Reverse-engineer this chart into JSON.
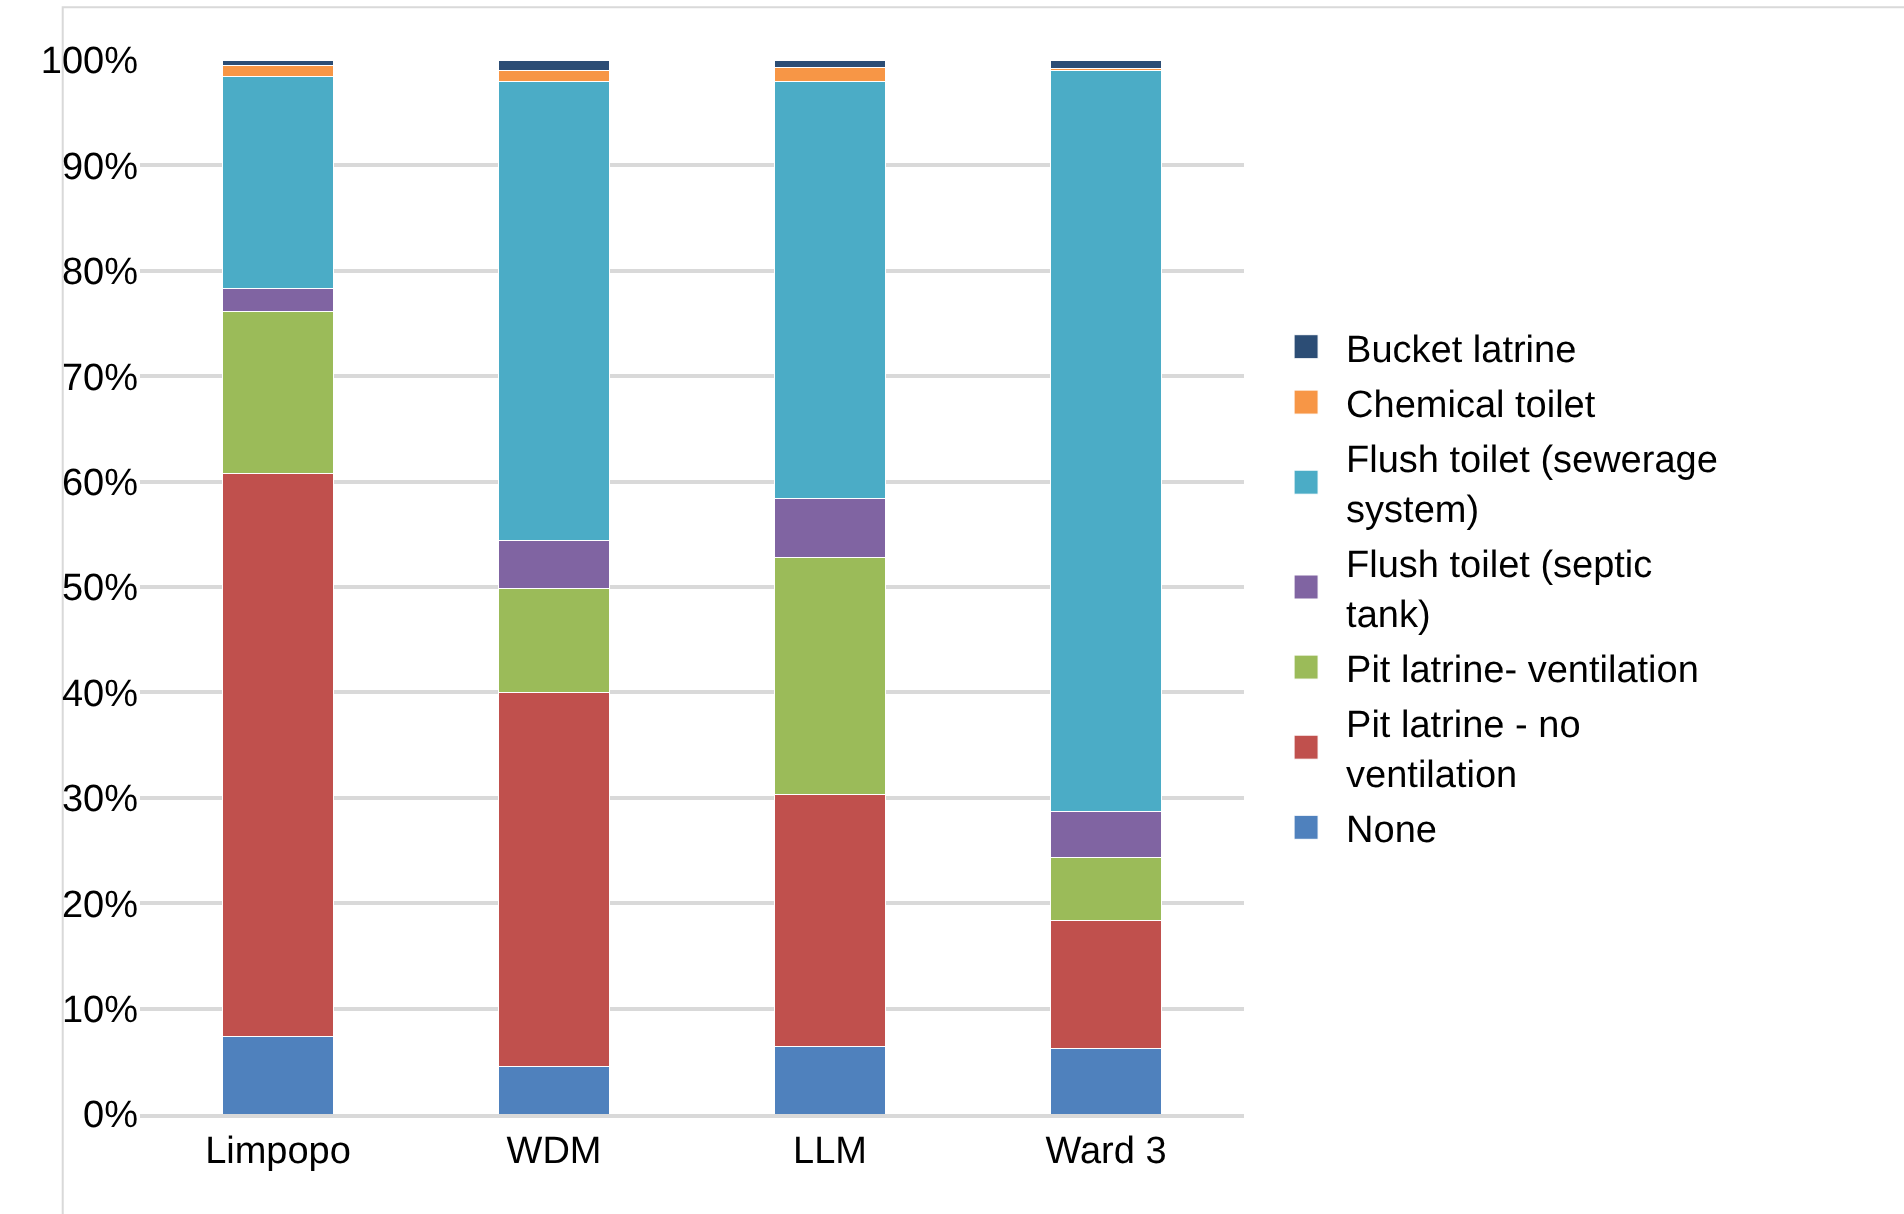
{
  "chart_data": {
    "type": "bar",
    "stacked": true,
    "categories": [
      "Limpopo",
      "WDM",
      "LLM",
      "Ward 3"
    ],
    "series": [
      {
        "name": "None",
        "color": "#4f81bd",
        "values": [
          7.4,
          4.5,
          6.4,
          6.2
        ]
      },
      {
        "name": "Pit latrine - no ventilation",
        "color": "#c0504d",
        "values": [
          53.4,
          35.5,
          23.9,
          12.2
        ]
      },
      {
        "name": "Pit latrine- ventilation",
        "color": "#9bbb59",
        "values": [
          15.3,
          9.9,
          22.5,
          5.9
        ]
      },
      {
        "name": "Flush toilet (septic tank)",
        "color": "#8064a2",
        "values": [
          2.2,
          4.5,
          5.6,
          4.4
        ]
      },
      {
        "name": "Flush toilet (sewerage system)",
        "color": "#4bacc6",
        "values": [
          20.1,
          43.6,
          39.6,
          70.3
        ]
      },
      {
        "name": "Chemical toilet",
        "color": "#f79646",
        "values": [
          1.1,
          1.0,
          1.3,
          0.2
        ]
      },
      {
        "name": "Bucket latrine",
        "color": "#2c4d75",
        "values": [
          0.5,
          1.0,
          0.7,
          0.8
        ]
      }
    ],
    "ylim": [
      0,
      100
    ],
    "yticks": [
      {
        "value": 0,
        "label": "0%"
      },
      {
        "value": 10,
        "label": "10%"
      },
      {
        "value": 20,
        "label": "20%"
      },
      {
        "value": 30,
        "label": "30%"
      },
      {
        "value": 40,
        "label": "40%"
      },
      {
        "value": 50,
        "label": "50%"
      },
      {
        "value": 60,
        "label": "60%"
      },
      {
        "value": 70,
        "label": "70%"
      },
      {
        "value": 80,
        "label": "80%"
      },
      {
        "value": 90,
        "label": "90%"
      },
      {
        "value": 100,
        "label": "100%"
      }
    ],
    "grid": "y",
    "legend": "right"
  }
}
